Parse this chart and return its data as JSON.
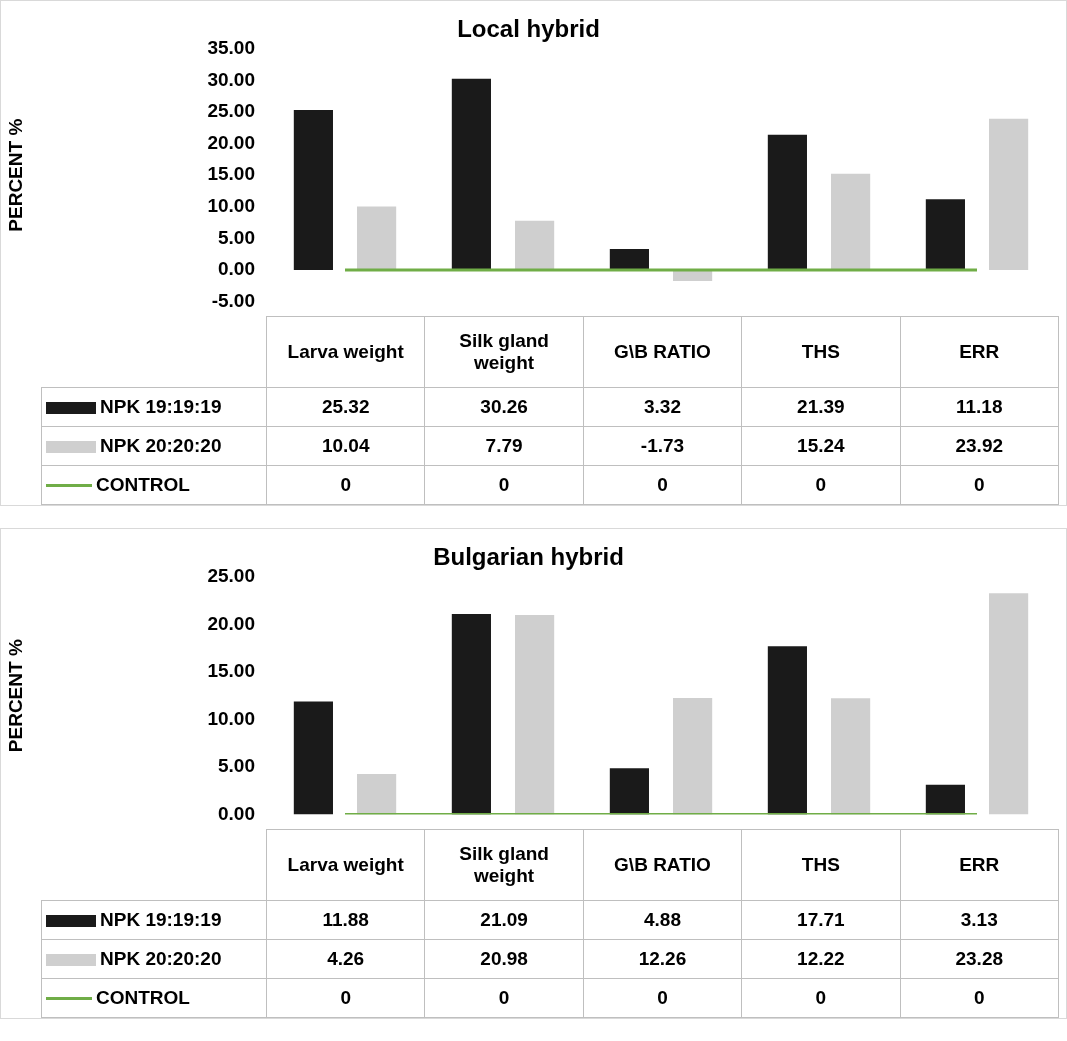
{
  "chart_data": [
    {
      "type": "bar",
      "title": "Local hybrid",
      "ylabel": "PERCENT %",
      "categories": [
        "Larva weight",
        "Silk gland weight",
        "G\\B RATIO",
        "THS",
        "ERR"
      ],
      "series": [
        {
          "name": "NPK 19:19:19",
          "color": "#1a1a1a",
          "values": [
            25.32,
            30.26,
            3.32,
            21.39,
            11.18
          ]
        },
        {
          "name": "NPK 20:20:20",
          "color": "#cfcfcf",
          "values": [
            10.04,
            7.79,
            -1.73,
            15.24,
            23.92
          ]
        },
        {
          "name": "CONTROL",
          "type": "line",
          "color": "#70ad47",
          "values": [
            0,
            0,
            0,
            0,
            0
          ]
        }
      ],
      "ylim": [
        -5,
        35
      ],
      "yticks": [
        {
          "value": -5,
          "label": "-5.00"
        },
        {
          "value": 0,
          "label": "0.00"
        },
        {
          "value": 5,
          "label": "5.00"
        },
        {
          "value": 10,
          "label": "10.00"
        },
        {
          "value": 15,
          "label": "15.00"
        },
        {
          "value": 20,
          "label": "20.00"
        },
        {
          "value": 25,
          "label": "25.00"
        },
        {
          "value": 30,
          "label": "30.00"
        },
        {
          "value": 35,
          "label": "35.00"
        }
      ],
      "data_labels": true,
      "legend": "bottom",
      "marker": "none"
    },
    {
      "type": "bar",
      "title": "Bulgarian hybrid",
      "ylabel": "PERCENT %",
      "categories": [
        "Larva weight",
        "Silk gland weight",
        "G\\B RATIO",
        "THS",
        "ERR"
      ],
      "series": [
        {
          "name": "NPK 19:19:19",
          "color": "#1a1a1a",
          "values": [
            11.88,
            21.09,
            4.88,
            17.71,
            3.13
          ]
        },
        {
          "name": "NPK 20:20:20",
          "color": "#cfcfcf",
          "values": [
            4.26,
            20.98,
            12.26,
            12.22,
            23.28
          ]
        },
        {
          "name": "CONTROL",
          "type": "line",
          "color": "#70ad47",
          "values": [
            0,
            0,
            0,
            0,
            0
          ]
        }
      ],
      "ylim": [
        0,
        25
      ],
      "yticks": [
        {
          "value": 0,
          "label": "0.00"
        },
        {
          "value": 5,
          "label": "5.00"
        },
        {
          "value": 10,
          "label": "10.00"
        },
        {
          "value": 15,
          "label": "15.00"
        },
        {
          "value": 20,
          "label": "20.00"
        },
        {
          "value": 25,
          "label": "25.00"
        }
      ],
      "data_labels": true,
      "legend": "bottom",
      "marker": "none"
    }
  ]
}
